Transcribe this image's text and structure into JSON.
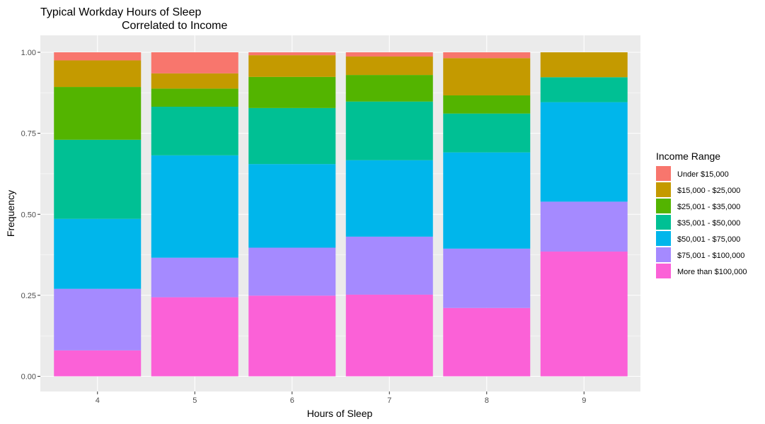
{
  "chart_data": {
    "type": "bar",
    "stacked": true,
    "title_line1": "Typical Workday Hours of Sleep",
    "title_line2": "Correlated to Income",
    "xlabel": "Hours of Sleep",
    "ylabel": "Frequency",
    "ylim": [
      0,
      1
    ],
    "yticks": [
      "0.00",
      "0.25",
      "0.50",
      "0.75",
      "1.00"
    ],
    "ytick_values": [
      0,
      0.25,
      0.5,
      0.75,
      1.0
    ],
    "categories": [
      "4",
      "5",
      "6",
      "7",
      "8",
      "9"
    ],
    "grid": true,
    "legend_position": "right",
    "legend_title": "Income Range",
    "legend_entries": [
      "Under $15,000",
      "$15,000 - $25,000",
      "$25,001 - $35,000",
      "$35,001 - $50,000",
      "$50,001 - $75,000",
      "$75,001 - $100,000",
      "More than $100,000"
    ],
    "stack_order": [
      "More than $100,000",
      "$75,001 - $100,000",
      "$50,001 - $75,000",
      "$35,001 - $50,000",
      "$25,001 - $35,000",
      "$15,000 - $25,000",
      "Under $15,000"
    ],
    "series": [
      {
        "name": "Under $15,000",
        "color": "#F8766D",
        "values": [
          0.025,
          0.065,
          0.009,
          0.013,
          0.018,
          0.0
        ]
      },
      {
        "name": "$15,000 - $25,000",
        "color": "#C49A00",
        "values": [
          0.082,
          0.047,
          0.067,
          0.057,
          0.115,
          0.077
        ]
      },
      {
        "name": "$25,001 - $35,000",
        "color": "#53B400",
        "values": [
          0.163,
          0.056,
          0.096,
          0.082,
          0.056,
          0.0
        ]
      },
      {
        "name": "$35,001 - $50,000",
        "color": "#00C094",
        "values": [
          0.244,
          0.15,
          0.173,
          0.181,
          0.12,
          0.077
        ]
      },
      {
        "name": "$50,001 - $75,000",
        "color": "#00B6EB",
        "values": [
          0.216,
          0.316,
          0.258,
          0.236,
          0.297,
          0.307
        ]
      },
      {
        "name": "$75,001 - $100,000",
        "color": "#A58AFF",
        "values": [
          0.19,
          0.122,
          0.148,
          0.179,
          0.183,
          0.154
        ]
      },
      {
        "name": "More than $100,000",
        "color": "#FB61D7",
        "values": [
          0.08,
          0.244,
          0.249,
          0.252,
          0.211,
          0.385
        ]
      }
    ]
  }
}
